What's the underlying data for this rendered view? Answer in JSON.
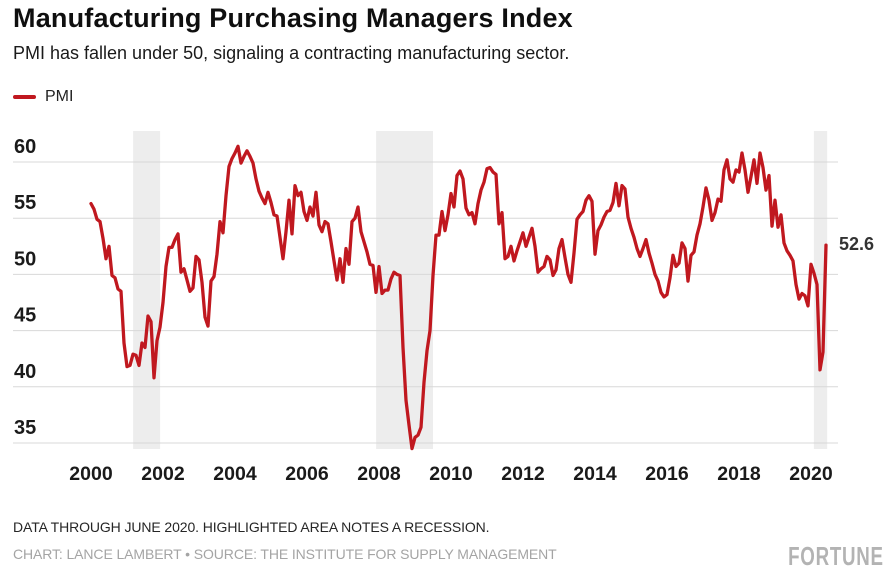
{
  "header": {
    "title": "Manufacturing Purchasing Managers Index",
    "subtitle": "PMI has fallen under 50, signaling a contracting manufacturing sector."
  },
  "legend": {
    "label": "PMI",
    "color": "#c0181f"
  },
  "chart_data": {
    "type": "line",
    "title": "Manufacturing Purchasing Managers Index",
    "subtitle": "PMI has fallen under 50, signaling a contracting manufacturing sector.",
    "xlabel": "",
    "ylabel": "",
    "grid": "horizontal",
    "legend_position": "top-left",
    "x_ticks": [
      2000,
      2002,
      2004,
      2006,
      2008,
      2010,
      2012,
      2014,
      2016,
      2018,
      2020
    ],
    "y_ticks": [
      60,
      55,
      50,
      45,
      40,
      35
    ],
    "xlim": [
      2000.0,
      2020.5
    ],
    "ylim": [
      33,
      62
    ],
    "end_label": "52.6",
    "line_color": "#c0181f",
    "band_color": "#ededed",
    "grid_color": "#d8d8d8",
    "recessions": [
      {
        "start": 2001.17,
        "end": 2001.92
      },
      {
        "start": 2007.92,
        "end": 2009.5
      },
      {
        "start": 2020.08,
        "end": 2020.45
      }
    ],
    "series": [
      {
        "name": "PMI",
        "frequency": "monthly",
        "x_start": "2000-01",
        "x_end": "2020-06",
        "values": [
          56.3,
          55.8,
          54.9,
          54.7,
          53.2,
          51.4,
          52.5,
          49.9,
          49.7,
          48.7,
          48.5,
          43.9,
          41.8,
          41.9,
          42.9,
          42.8,
          41.9,
          43.9,
          43.5,
          46.3,
          45.8,
          40.8,
          44.1,
          45.3,
          47.5,
          50.7,
          52.4,
          52.4,
          53.1,
          53.6,
          50.2,
          50.5,
          49.5,
          48.5,
          48.8,
          51.6,
          51.3,
          49.3,
          46.2,
          45.4,
          49.4,
          49.8,
          51.8,
          54.7,
          53.7,
          57.0,
          59.6,
          60.3,
          60.8,
          61.4,
          59.9,
          60.5,
          61.0,
          60.5,
          59.9,
          58.5,
          57.4,
          56.8,
          56.3,
          57.3,
          56.4,
          55.3,
          55.2,
          53.3,
          51.4,
          53.8,
          56.6,
          53.6,
          57.9,
          57.0,
          57.3,
          55.6,
          54.8,
          56.0,
          55.2,
          57.3,
          54.4,
          53.8,
          54.7,
          54.5,
          52.9,
          51.2,
          49.5,
          51.4,
          49.3,
          52.3,
          50.9,
          54.7,
          55.0,
          56.0,
          53.8,
          52.9,
          52.0,
          50.9,
          50.8,
          48.4,
          50.7,
          48.3,
          48.6,
          48.6,
          49.6,
          50.2,
          50.0,
          49.9,
          43.5,
          38.8,
          36.6,
          34.5,
          35.5,
          35.7,
          36.4,
          40.4,
          43.2,
          45.0,
          49.9,
          53.5,
          53.5,
          55.6,
          53.9,
          55.3,
          57.2,
          56.0,
          58.8,
          59.2,
          58.5,
          55.9,
          55.3,
          55.5,
          54.5,
          56.3,
          57.5,
          58.2,
          59.4,
          59.5,
          59.1,
          58.9,
          54.5,
          55.5,
          51.4,
          51.6,
          52.5,
          51.2,
          52.1,
          52.9,
          53.7,
          52.5,
          53.3,
          54.1,
          52.5,
          50.2,
          50.5,
          50.7,
          51.6,
          51.3,
          49.9,
          50.4,
          52.3,
          53.1,
          51.5,
          50.0,
          49.3,
          51.9,
          54.9,
          55.3,
          55.6,
          56.6,
          57.0,
          56.5,
          51.8,
          53.9,
          54.4,
          55.1,
          55.6,
          55.7,
          56.4,
          58.1,
          56.1,
          57.9,
          57.6,
          55.1,
          54.1,
          53.3,
          52.3,
          51.6,
          52.3,
          53.1,
          51.9,
          51.0,
          50.0,
          49.4,
          48.4,
          48.0,
          48.2,
          49.7,
          51.7,
          50.7,
          51.0,
          52.8,
          52.3,
          49.4,
          51.7,
          52.0,
          53.5,
          54.5,
          56.0,
          57.7,
          56.6,
          54.8,
          55.5,
          56.7,
          56.5,
          59.3,
          60.2,
          58.5,
          58.2,
          59.3,
          59.1,
          60.8,
          59.3,
          57.3,
          58.7,
          60.2,
          58.1,
          60.8,
          59.5,
          57.5,
          58.8,
          54.3,
          56.6,
          54.2,
          55.3,
          52.8,
          52.1,
          51.7,
          51.2,
          49.1,
          47.8,
          48.3,
          48.1,
          47.2,
          50.9,
          50.1,
          49.1,
          41.5,
          43.1,
          52.6
        ]
      }
    ]
  },
  "footer": {
    "note": "DATA THROUGH JUNE 2020. HIGHLIGHTED AREA NOTES A RECESSION.",
    "credit": "CHART: LANCE LAMBERT • SOURCE: THE INSTITUTE FOR SUPPLY MANAGEMENT",
    "brand": "FORTUNE"
  }
}
